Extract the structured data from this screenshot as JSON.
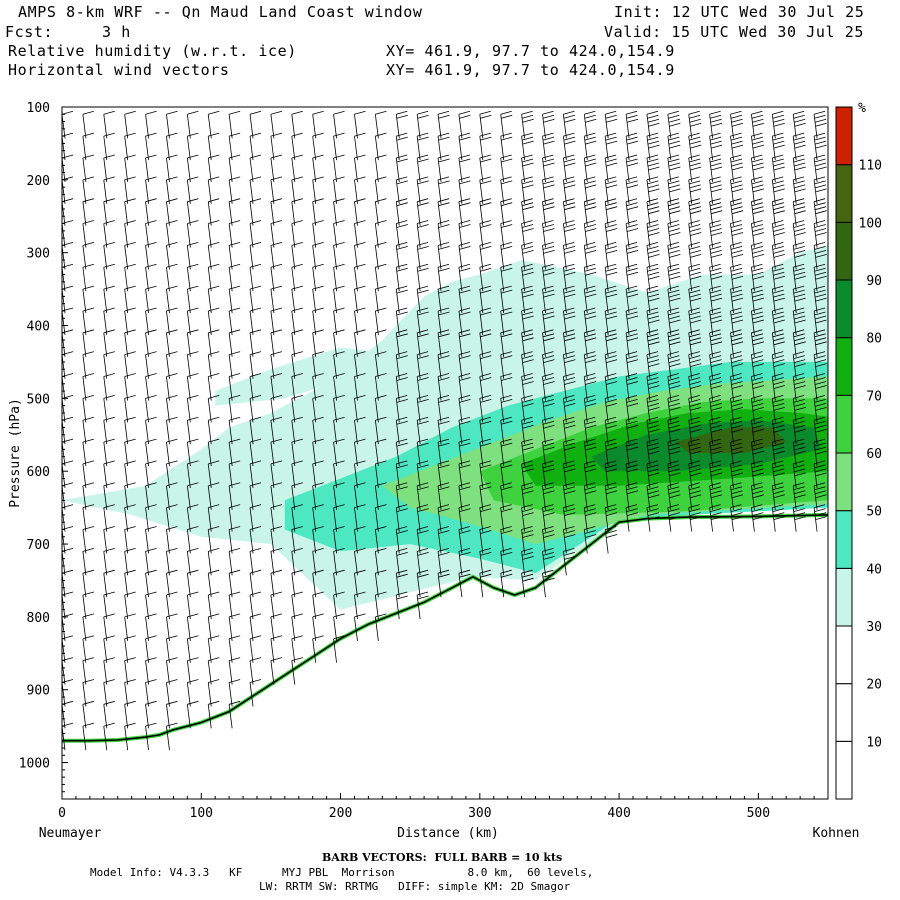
{
  "header": {
    "title": "AMPS 8-km WRF -- Qn Maud Land Coast window",
    "fcst_label": "Fcst:",
    "fcst_value": "3 h",
    "init": "Init: 12 UTC Wed 30 Jul 25",
    "valid": "Valid: 15 UTC Wed 30 Jul 25",
    "field1": "Relative humidity (w.r.t. ice)",
    "field2": "Horizontal wind vectors",
    "xy1": "XY= 461.9, 97.7 to 424.0,154.9",
    "xy2": "XY= 461.9, 97.7 to 424.0,154.9"
  },
  "footer": {
    "barb_note": "BARB VECTORS:  FULL BARB = 10 kts",
    "model_line1": "Model Info: V4.3.3   KF      MYJ PBL  Morrison           8.0 km,  60 levels,",
    "model_line2": "LW: RRTM SW: RRTMG   DIFF: simple KM: 2D Smagor"
  },
  "chart_data": {
    "type": "heatmap",
    "subtype": "vertical cross-section with wind barbs",
    "xlabel": "Distance (km)",
    "ylabel": "Pressure (hPa)",
    "x_endpoint_labels": {
      "left": "Neumayer",
      "right": "Kohnen"
    },
    "xlim": [
      0,
      550
    ],
    "ylim": [
      1050,
      100
    ],
    "x_ticks": [
      0,
      100,
      200,
      300,
      400,
      500
    ],
    "y_ticks": [
      100,
      200,
      300,
      400,
      500,
      600,
      700,
      800,
      900,
      1000
    ],
    "colorbar": {
      "unit": "%",
      "levels": [
        10,
        20,
        30,
        40,
        50,
        60,
        70,
        80,
        90,
        100,
        110
      ],
      "colors": [
        "#ffffff",
        "#ffffff",
        "#ffffff",
        "#c8f5e8",
        "#4de8c2",
        "#7fe07f",
        "#3fd23f",
        "#10b010",
        "#0a8a2a",
        "#336611",
        "#446611",
        "#cc2200"
      ]
    },
    "terrain_surface": [
      [
        0,
        970
      ],
      [
        20,
        970
      ],
      [
        40,
        969
      ],
      [
        60,
        965
      ],
      [
        70,
        962
      ],
      [
        80,
        955
      ],
      [
        100,
        945
      ],
      [
        120,
        930
      ],
      [
        140,
        905
      ],
      [
        160,
        880
      ],
      [
        180,
        855
      ],
      [
        200,
        830
      ],
      [
        220,
        810
      ],
      [
        240,
        795
      ],
      [
        260,
        780
      ],
      [
        280,
        760
      ],
      [
        295,
        745
      ],
      [
        310,
        760
      ],
      [
        325,
        770
      ],
      [
        340,
        760
      ],
      [
        360,
        730
      ],
      [
        380,
        700
      ],
      [
        400,
        670
      ],
      [
        420,
        665
      ],
      [
        450,
        663
      ],
      [
        500,
        662
      ],
      [
        550,
        660
      ]
    ],
    "rh_regions": [
      {
        "level_pct": 30,
        "polygon": [
          [
            0,
            640
          ],
          [
            30,
            630
          ],
          [
            60,
            620
          ],
          [
            100,
            570
          ],
          [
            120,
            540
          ],
          [
            150,
            520
          ],
          [
            190,
            480
          ],
          [
            230,
            420
          ],
          [
            260,
            360
          ],
          [
            280,
            340
          ],
          [
            300,
            330
          ],
          [
            330,
            310
          ],
          [
            380,
            330
          ],
          [
            420,
            355
          ],
          [
            460,
            330
          ],
          [
            500,
            330
          ],
          [
            530,
            300
          ],
          [
            550,
            290
          ],
          [
            550,
            640
          ],
          [
            400,
            670
          ],
          [
            340,
            750
          ],
          [
            295,
            745
          ],
          [
            200,
            790
          ],
          [
            150,
            700
          ],
          [
            100,
            690
          ],
          [
            50,
            660
          ]
        ]
      },
      {
        "level_pct": 30,
        "polygon": [
          [
            110,
            510
          ],
          [
            160,
            500
          ],
          [
            210,
            470
          ],
          [
            240,
            440
          ],
          [
            200,
            430
          ],
          [
            150,
            460
          ],
          [
            110,
            490
          ]
        ]
      },
      {
        "level_pct": 40,
        "polygon": [
          [
            160,
            640
          ],
          [
            200,
            610
          ],
          [
            240,
            580
          ],
          [
            280,
            540
          ],
          [
            320,
            510
          ],
          [
            360,
            490
          ],
          [
            400,
            470
          ],
          [
            440,
            460
          ],
          [
            480,
            450
          ],
          [
            520,
            450
          ],
          [
            550,
            450
          ],
          [
            550,
            650
          ],
          [
            400,
            665
          ],
          [
            340,
            740
          ],
          [
            300,
            720
          ],
          [
            250,
            700
          ],
          [
            200,
            710
          ],
          [
            160,
            680
          ]
        ]
      },
      {
        "level_pct": 50,
        "polygon": [
          [
            230,
            620
          ],
          [
            270,
            590
          ],
          [
            310,
            560
          ],
          [
            350,
            530
          ],
          [
            390,
            505
          ],
          [
            430,
            490
          ],
          [
            470,
            480
          ],
          [
            510,
            475
          ],
          [
            550,
            470
          ],
          [
            550,
            645
          ],
          [
            420,
            660
          ],
          [
            340,
            700
          ],
          [
            290,
            670
          ],
          [
            250,
            650
          ]
        ]
      },
      {
        "level_pct": 60,
        "polygon": [
          [
            300,
            600
          ],
          [
            340,
            570
          ],
          [
            380,
            540
          ],
          [
            420,
            520
          ],
          [
            460,
            505
          ],
          [
            500,
            500
          ],
          [
            540,
            500
          ],
          [
            550,
            500
          ],
          [
            550,
            640
          ],
          [
            450,
            655
          ],
          [
            360,
            660
          ],
          [
            310,
            640
          ]
        ]
      },
      {
        "level_pct": 70,
        "polygon": [
          [
            330,
            590
          ],
          [
            370,
            560
          ],
          [
            410,
            535
          ],
          [
            450,
            520
          ],
          [
            490,
            515
          ],
          [
            530,
            520
          ],
          [
            550,
            525
          ],
          [
            550,
            600
          ],
          [
            480,
            610
          ],
          [
            400,
            620
          ],
          [
            340,
            620
          ]
        ]
      },
      {
        "level_pct": 80,
        "polygon": [
          [
            380,
            580
          ],
          [
            420,
            550
          ],
          [
            460,
            535
          ],
          [
            500,
            530
          ],
          [
            540,
            540
          ],
          [
            545,
            570
          ],
          [
            500,
            590
          ],
          [
            440,
            600
          ],
          [
            390,
            600
          ]
        ]
      },
      {
        "level_pct": 90,
        "polygon": [
          [
            440,
            560
          ],
          [
            480,
            540
          ],
          [
            510,
            540
          ],
          [
            520,
            560
          ],
          [
            490,
            575
          ],
          [
            450,
            575
          ]
        ]
      }
    ],
    "wind_barb_columns_km": [
      0,
      15,
      30,
      45,
      60,
      75,
      90,
      105,
      120,
      135,
      150,
      165,
      180,
      195,
      210,
      225,
      240,
      255,
      270,
      285,
      300,
      315,
      330,
      345,
      360,
      375,
      390,
      405,
      420,
      435,
      450,
      465,
      480,
      495,
      510,
      525,
      540
    ],
    "wind_barb_levels_hpa": [
      110,
      140,
      170,
      200,
      230,
      260,
      290,
      320,
      350,
      380,
      410,
      440,
      470,
      500,
      530,
      560,
      590,
      620,
      650,
      680,
      710,
      740,
      770,
      800,
      830,
      860,
      890,
      920,
      950,
      980
    ],
    "wind_barbs_full_count_by_column": [
      1,
      1,
      1,
      1,
      1,
      1,
      1,
      1,
      1,
      1,
      1,
      1,
      1,
      1,
      1,
      1,
      2,
      2,
      2,
      2,
      2,
      2,
      3,
      3,
      3,
      3,
      3,
      3,
      4,
      4,
      4,
      4,
      4,
      4,
      4,
      4,
      4
    ]
  }
}
